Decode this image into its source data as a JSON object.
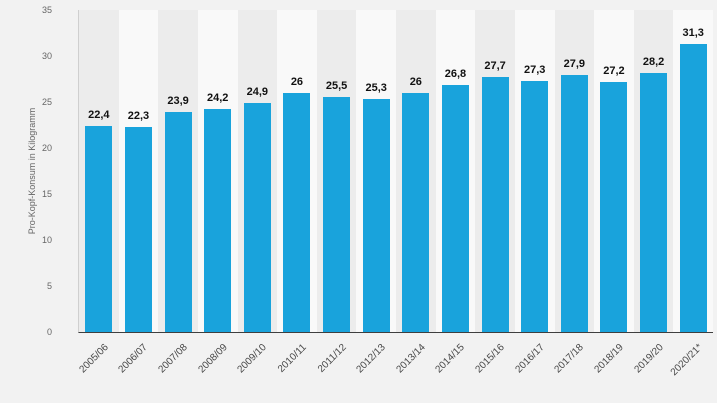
{
  "chart_data": {
    "type": "bar",
    "title": "",
    "xlabel": "",
    "ylabel": "Pro-Kopf-Konsum in Kilogramm",
    "ylim": [
      0,
      35
    ],
    "yticks": [
      0,
      5,
      10,
      15,
      20,
      25,
      30,
      35
    ],
    "grid": "vertical-alternating-bands",
    "legend": "none",
    "bar_color": "#19a3dc",
    "categories": [
      "2005/06",
      "2006/07",
      "2007/08",
      "2008/09",
      "2009/10",
      "2010/11",
      "2011/12",
      "2012/13",
      "2013/14",
      "2014/15",
      "2015/16",
      "2016/17",
      "2017/18",
      "2018/19",
      "2019/20",
      "2020/21*"
    ],
    "values": [
      22.4,
      22.3,
      23.9,
      24.2,
      24.9,
      26,
      25.5,
      25.3,
      26,
      26.8,
      27.7,
      27.3,
      27.9,
      27.2,
      28.2,
      31.3
    ],
    "value_labels": [
      "22,4",
      "22,3",
      "23,9",
      "24,2",
      "24,9",
      "26",
      "25,5",
      "25,3",
      "26",
      "26,8",
      "27,7",
      "27,3",
      "27,9",
      "27,2",
      "28,2",
      "31,3"
    ]
  }
}
